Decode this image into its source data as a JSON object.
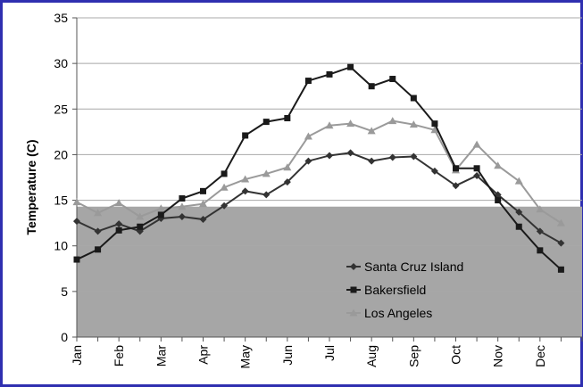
{
  "chart_data": {
    "type": "line",
    "title": "",
    "xlabel": "",
    "ylabel": "Temperature (C)",
    "ylim": [
      0,
      35
    ],
    "yticks": [
      "0",
      "5",
      "10",
      "15",
      "20",
      "25",
      "30",
      "35"
    ],
    "month_labels": [
      "Jan",
      "Feb",
      "Mar",
      "Apr",
      "May",
      "Jun",
      "Jul",
      "Aug",
      "Sep",
      "Oct",
      "Nov",
      "Dec"
    ],
    "x_unit": "half-month index (0 = Jan)",
    "grid": true,
    "legend_position": "bottom-right",
    "shaded_band": {
      "y_from": 0,
      "y_to": 14.3,
      "color": "#a6a6a6"
    },
    "series": [
      {
        "name": "Santa Cruz Island",
        "marker": "diamond",
        "color": "#333333",
        "values": [
          12.7,
          11.6,
          12.4,
          11.6,
          13.0,
          13.2,
          12.9,
          14.4,
          16.0,
          15.6,
          17.0,
          19.3,
          19.9,
          20.2,
          19.3,
          19.7,
          19.8,
          18.2,
          16.6,
          17.7,
          15.6,
          13.7,
          11.6,
          10.3
        ]
      },
      {
        "name": "Bakersfield",
        "marker": "square",
        "color": "#1a1a1a",
        "values": [
          8.5,
          9.6,
          11.7,
          12.1,
          13.4,
          15.2,
          16.0,
          17.9,
          22.1,
          23.6,
          24.0,
          28.1,
          28.8,
          29.6,
          27.5,
          28.3,
          26.2,
          23.4,
          18.5,
          18.5,
          15.0,
          12.1,
          9.5,
          7.4
        ]
      },
      {
        "name": "Los Angeles",
        "marker": "triangle",
        "color": "#9a9a9a",
        "values": [
          14.8,
          13.6,
          14.7,
          13.2,
          14.1,
          14.3,
          14.6,
          16.4,
          17.3,
          17.9,
          18.6,
          22.0,
          23.2,
          23.4,
          22.6,
          23.7,
          23.3,
          22.7,
          18.3,
          21.1,
          18.8,
          17.1,
          14.0,
          12.5
        ]
      }
    ]
  }
}
